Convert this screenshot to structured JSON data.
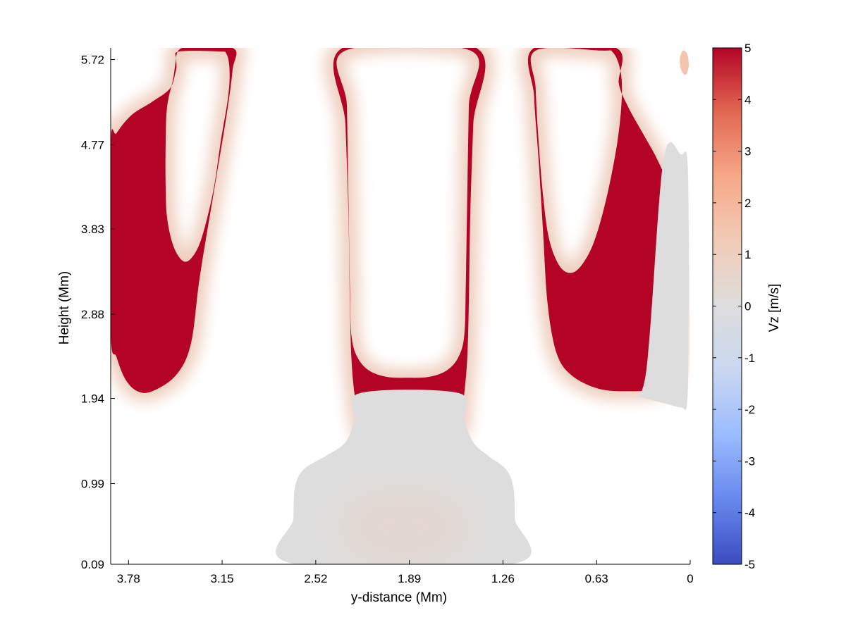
{
  "chart_data": {
    "type": "heatmap",
    "title": "",
    "xlabel": "y-distance (Mm)",
    "ylabel": "Height (Mm)",
    "x_ticks": [
      3.78,
      3.15,
      2.52,
      1.89,
      1.26,
      0.63,
      0
    ],
    "x_tick_labels": [
      "3.78",
      "3.15",
      "2.52",
      "1.89",
      "1.26",
      "0.63",
      "0"
    ],
    "x_reversed": true,
    "xlim": [
      3.9,
      0
    ],
    "y_ticks": [
      0.09,
      0.99,
      1.94,
      2.88,
      3.83,
      4.77,
      5.72
    ],
    "y_tick_labels": [
      "0.09",
      "0.99",
      "1.94",
      "2.88",
      "3.83",
      "4.77",
      "5.72"
    ],
    "ylim": [
      0.09,
      5.85
    ],
    "colorbar": {
      "label": "Vz [m/s]",
      "range": [
        -5,
        5
      ],
      "ticks": [
        -5,
        -4,
        -3,
        -2,
        -1,
        0,
        1,
        2,
        3,
        4,
        5
      ],
      "tick_labels": [
        "-5",
        "-4",
        "-3",
        "-2",
        "-1",
        "0",
        "1",
        "2",
        "3",
        "4",
        "5"
      ],
      "colormap": "coolwarm",
      "colors": [
        "#3b4cc0",
        "#6788ee",
        "#9abbff",
        "#c9d7f0",
        "#dddddd",
        "#f2cbb7",
        "#f7a889",
        "#e26952",
        "#b40426"
      ]
    },
    "regions": [
      {
        "name": "left-updraft",
        "value": 5,
        "halo_value": 1,
        "outline": [
          [
            3.9,
            4.75
          ],
          [
            3.86,
            4.9
          ],
          [
            3.76,
            5.1
          ],
          [
            3.62,
            5.25
          ],
          [
            3.5,
            5.4
          ],
          [
            3.46,
            5.6
          ],
          [
            3.42,
            5.85
          ],
          [
            3.08,
            5.85
          ],
          [
            3.08,
            5.6
          ],
          [
            3.12,
            5.1
          ],
          [
            3.2,
            4.3
          ],
          [
            3.3,
            3.3
          ],
          [
            3.36,
            2.55
          ],
          [
            3.46,
            2.2
          ],
          [
            3.62,
            2.02
          ],
          [
            3.72,
            2.02
          ],
          [
            3.8,
            2.15
          ],
          [
            3.86,
            2.4
          ],
          [
            3.9,
            2.7
          ]
        ],
        "hole": [
          [
            3.46,
            5.72
          ],
          [
            3.48,
            5.5
          ],
          [
            3.52,
            5.2
          ],
          [
            3.53,
            4.8
          ],
          [
            3.53,
            4.3
          ],
          [
            3.52,
            3.95
          ],
          [
            3.48,
            3.65
          ],
          [
            3.42,
            3.48
          ],
          [
            3.36,
            3.5
          ],
          [
            3.29,
            3.72
          ],
          [
            3.21,
            4.25
          ],
          [
            3.16,
            4.8
          ],
          [
            3.11,
            5.3
          ],
          [
            3.1,
            5.6
          ],
          [
            3.12,
            5.78
          ],
          [
            3.17,
            5.81
          ],
          [
            3.44,
            5.81
          ]
        ]
      },
      {
        "name": "center-updraft",
        "value": 5,
        "halo_value": 1,
        "outline": [
          [
            2.34,
            5.85
          ],
          [
            2.32,
            5.0
          ],
          [
            2.3,
            4.0
          ],
          [
            2.29,
            3.0
          ],
          [
            2.28,
            2.4
          ],
          [
            2.26,
            2.0
          ],
          [
            2.22,
            1.6
          ],
          [
            2.12,
            1.4
          ],
          [
            1.89,
            1.32
          ],
          [
            1.65,
            1.4
          ],
          [
            1.55,
            1.6
          ],
          [
            1.52,
            2.0
          ],
          [
            1.5,
            2.4
          ],
          [
            1.49,
            3.0
          ],
          [
            1.48,
            4.0
          ],
          [
            1.46,
            5.0
          ],
          [
            1.44,
            5.85
          ]
        ],
        "hole": [
          [
            2.32,
            5.82
          ],
          [
            2.31,
            5.2
          ],
          [
            2.3,
            4.2
          ],
          [
            2.29,
            3.2
          ],
          [
            2.28,
            2.65
          ],
          [
            2.24,
            2.4
          ],
          [
            2.16,
            2.25
          ],
          [
            2.04,
            2.18
          ],
          [
            1.9,
            2.17
          ],
          [
            1.76,
            2.18
          ],
          [
            1.64,
            2.25
          ],
          [
            1.56,
            2.4
          ],
          [
            1.52,
            2.65
          ],
          [
            1.51,
            3.2
          ],
          [
            1.5,
            4.2
          ],
          [
            1.49,
            5.2
          ],
          [
            1.48,
            5.82
          ]
        ]
      },
      {
        "name": "right-updraft",
        "value": 5,
        "halo_value": 1,
        "outline": [
          [
            1.05,
            5.85
          ],
          [
            1.05,
            5.3
          ],
          [
            1.02,
            4.6
          ],
          [
            0.99,
            3.8
          ],
          [
            0.96,
            3.0
          ],
          [
            0.9,
            2.45
          ],
          [
            0.8,
            2.2
          ],
          [
            0.62,
            2.05
          ],
          [
            0.42,
            2.02
          ],
          [
            0.22,
            2.05
          ],
          [
            0.12,
            2.2
          ],
          [
            0.08,
            2.6
          ],
          [
            0.1,
            3.2
          ],
          [
            0.12,
            3.8
          ],
          [
            0.15,
            4.3
          ],
          [
            0.22,
            4.6
          ],
          [
            0.32,
            4.9
          ],
          [
            0.42,
            5.2
          ],
          [
            0.48,
            5.45
          ],
          [
            0.5,
            5.85
          ]
        ],
        "hole": [
          [
            1.04,
            5.82
          ],
          [
            1.04,
            5.4
          ],
          [
            1.02,
            4.8
          ],
          [
            0.99,
            4.2
          ],
          [
            0.95,
            3.72
          ],
          [
            0.88,
            3.42
          ],
          [
            0.8,
            3.34
          ],
          [
            0.72,
            3.45
          ],
          [
            0.64,
            3.72
          ],
          [
            0.56,
            4.2
          ],
          [
            0.49,
            4.8
          ],
          [
            0.46,
            5.3
          ],
          [
            0.47,
            5.6
          ],
          [
            0.52,
            5.8
          ],
          [
            0.6,
            5.82
          ]
        ]
      },
      {
        "name": "right-edge-halo",
        "value": 0,
        "outline": [
          [
            0.18,
            4.6
          ],
          [
            0.06,
            4.66
          ],
          [
            0.02,
            4.62
          ],
          [
            0.01,
            3.8
          ],
          [
            0.01,
            2.8
          ],
          [
            0.02,
            1.9
          ],
          [
            0.06,
            1.84
          ],
          [
            0.16,
            1.88
          ],
          [
            0.3,
            1.94
          ],
          [
            0.42,
            2.0
          ],
          [
            0.3,
            2.2
          ]
        ]
      },
      {
        "name": "bottom-center-plume",
        "value": 0,
        "core_value": 0.5,
        "outline": [
          [
            2.68,
            0.1
          ],
          [
            2.67,
            0.6
          ],
          [
            2.66,
            0.95
          ],
          [
            2.6,
            1.15
          ],
          [
            2.45,
            1.3
          ],
          [
            2.32,
            1.45
          ],
          [
            2.26,
            1.7
          ],
          [
            2.22,
            2.0
          ],
          [
            1.56,
            2.0
          ],
          [
            1.52,
            1.7
          ],
          [
            1.46,
            1.45
          ],
          [
            1.36,
            1.3
          ],
          [
            1.24,
            1.15
          ],
          [
            1.19,
            0.95
          ],
          [
            1.18,
            0.6
          ],
          [
            1.18,
            0.1
          ]
        ]
      },
      {
        "name": "top-right-blob",
        "value": 1.5,
        "outline": [
          [
            0.05,
            5.82
          ],
          [
            0.02,
            5.78
          ],
          [
            0.01,
            5.65
          ],
          [
            0.03,
            5.55
          ],
          [
            0.06,
            5.6
          ],
          [
            0.07,
            5.72
          ]
        ]
      }
    ]
  }
}
